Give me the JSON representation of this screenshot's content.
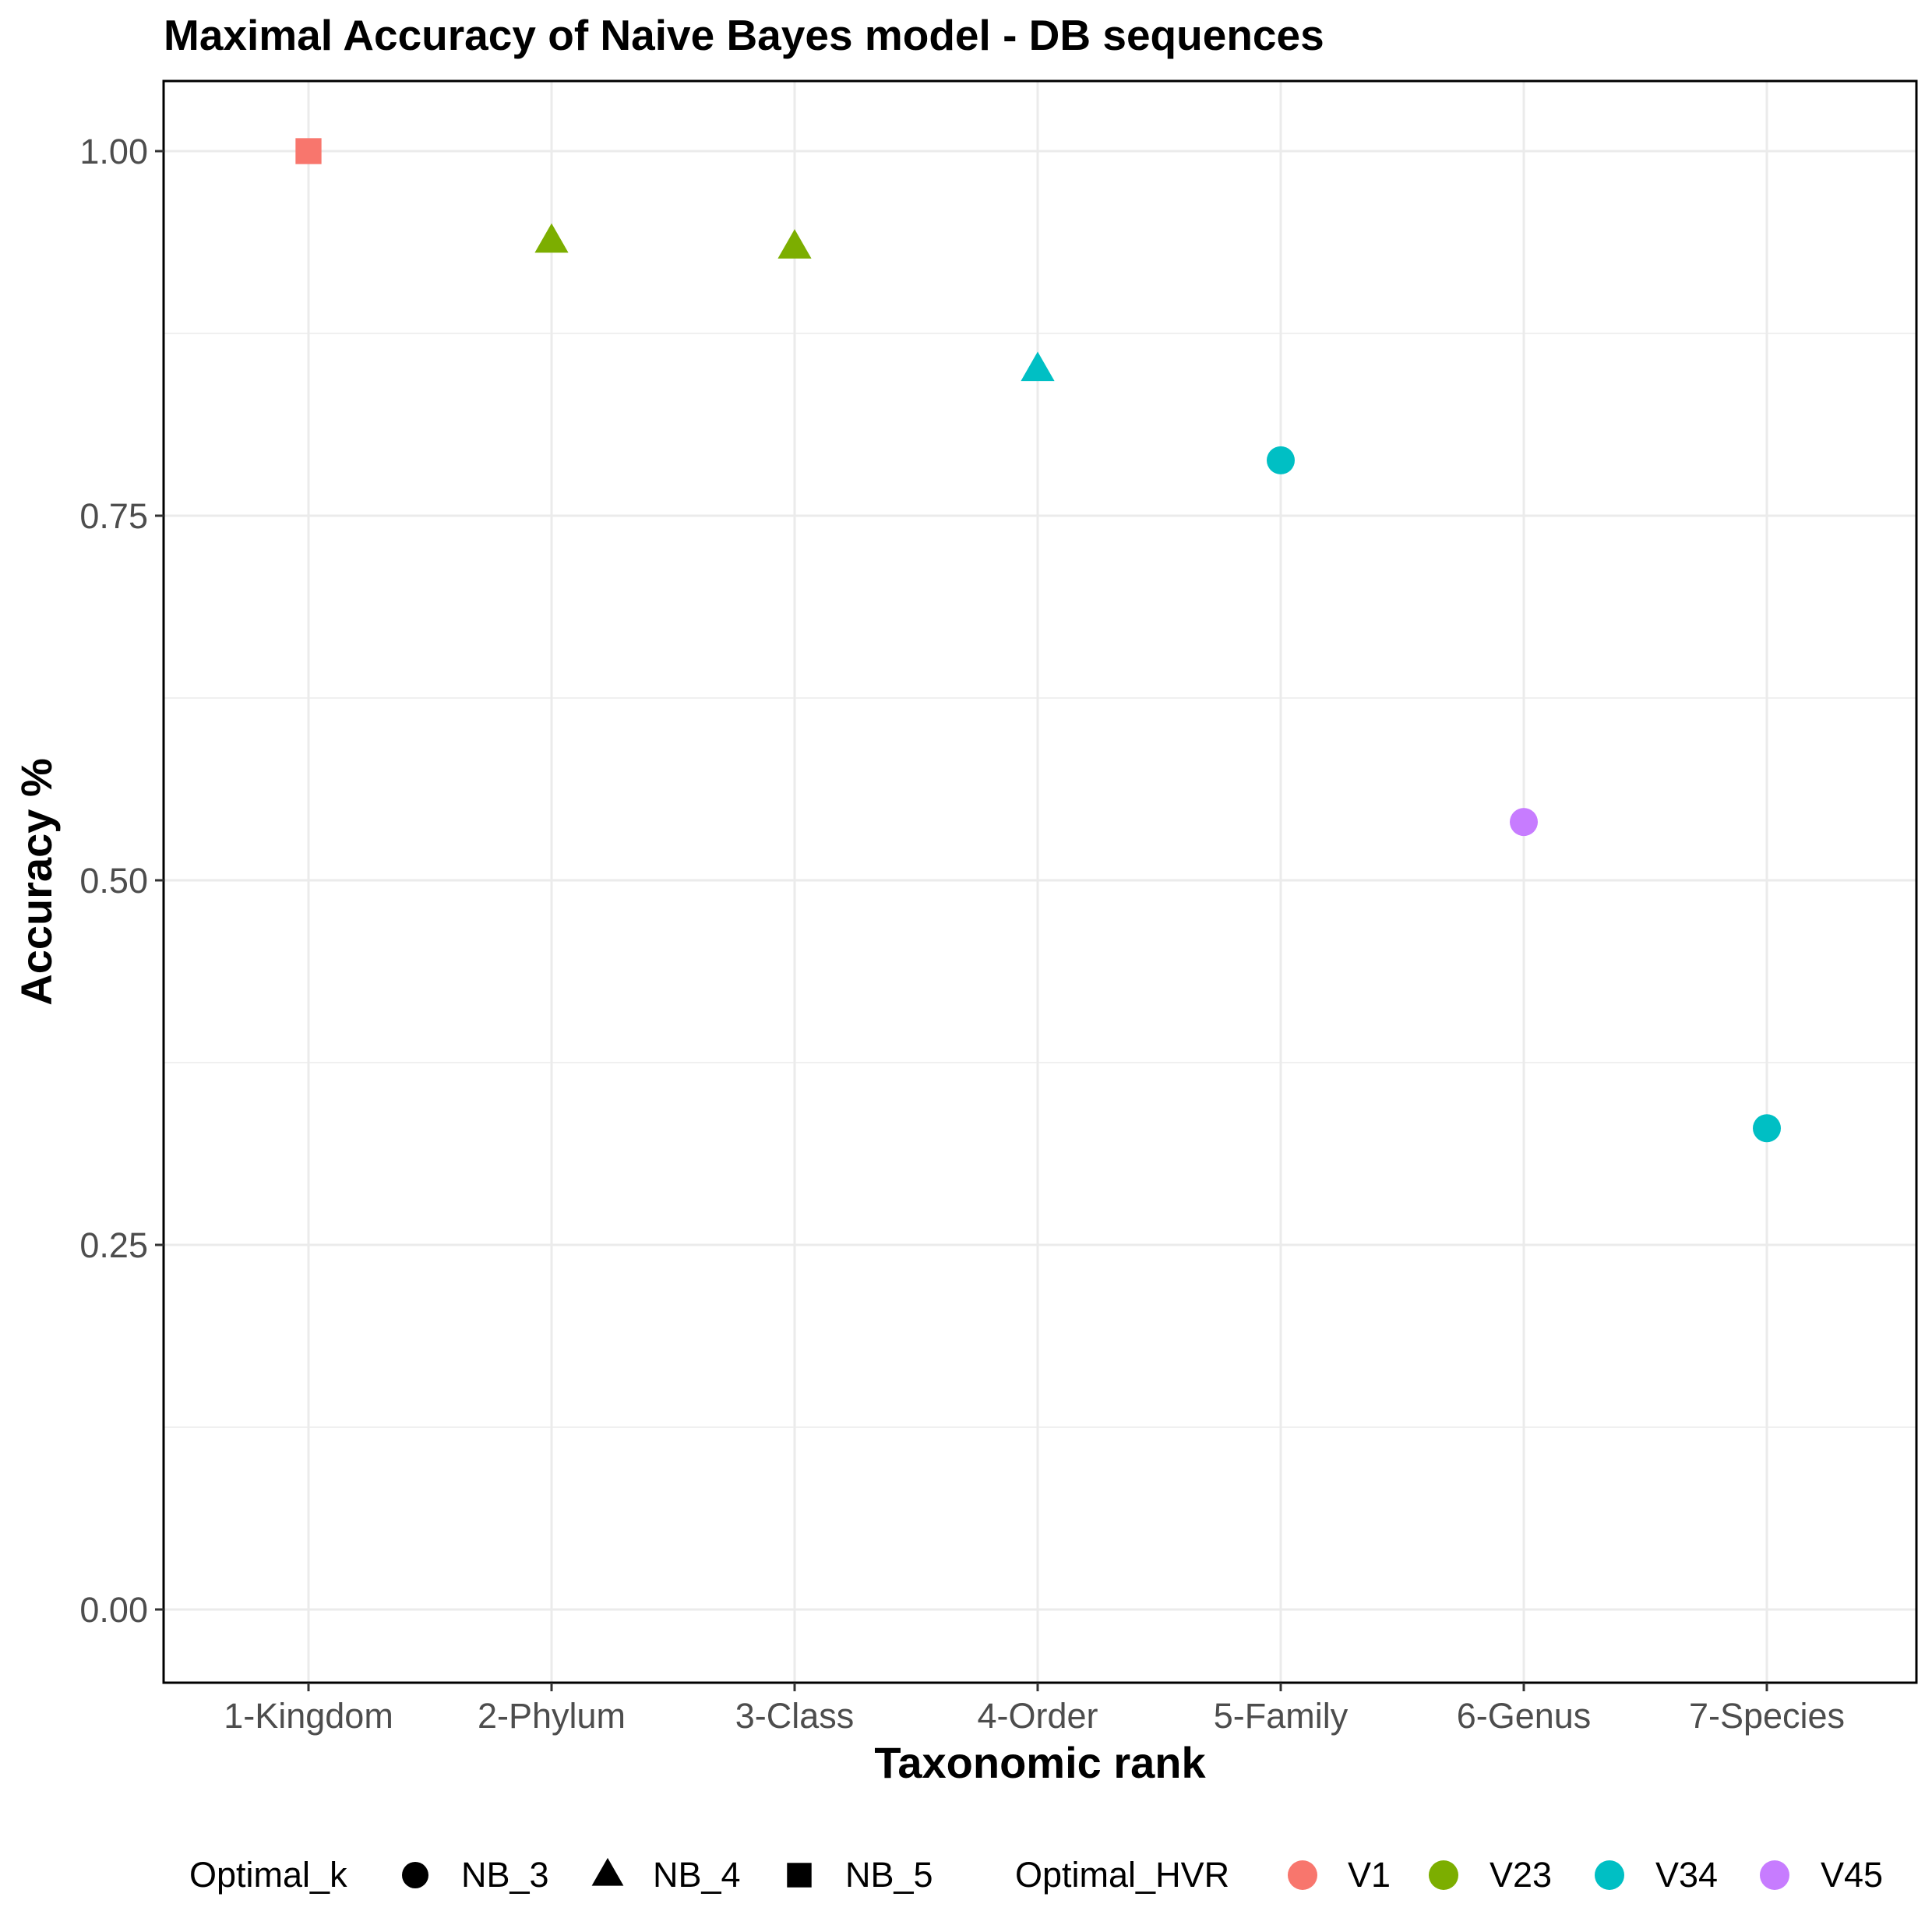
{
  "chart_data": {
    "type": "scatter",
    "title": "Maximal Accuracy of Naive Bayes model - DB sequences",
    "xlabel": "Taxonomic rank",
    "ylabel": "Accuracy %",
    "categories": [
      "1-Kingdom",
      "2-Phylum",
      "3-Class",
      "4-Order",
      "5-Family",
      "6-Genus",
      "7-Species"
    ],
    "ylim": [
      -0.05,
      1.05
    ],
    "yticks": [
      "0.00",
      "0.25",
      "0.50",
      "0.75",
      "1.00"
    ],
    "grid": true,
    "legend_position": "bottom",
    "points": [
      {
        "x": "1-Kingdom",
        "y": 1.0,
        "k": "NB_5",
        "hvr": "V1"
      },
      {
        "x": "2-Phylum",
        "y": 0.938,
        "k": "NB_4",
        "hvr": "V23"
      },
      {
        "x": "3-Class",
        "y": 0.934,
        "k": "NB_4",
        "hvr": "V23"
      },
      {
        "x": "4-Order",
        "y": 0.85,
        "k": "NB_4",
        "hvr": "V34"
      },
      {
        "x": "5-Family",
        "y": 0.788,
        "k": "NB_3",
        "hvr": "V34"
      },
      {
        "x": "6-Genus",
        "y": 0.54,
        "k": "NB_3",
        "hvr": "V45"
      },
      {
        "x": "7-Species",
        "y": 0.33,
        "k": "NB_3",
        "hvr": "V34"
      }
    ],
    "legend_shape": {
      "title": "Optimal_k",
      "items": [
        {
          "label": "NB_3",
          "shape": "circle"
        },
        {
          "label": "NB_4",
          "shape": "triangle"
        },
        {
          "label": "NB_5",
          "shape": "square"
        }
      ]
    },
    "legend_color": {
      "title": "Optimal_HVR",
      "items": [
        {
          "label": "V1",
          "color": "#F8766D"
        },
        {
          "label": "V23",
          "color": "#7CAE00"
        },
        {
          "label": "V34",
          "color": "#00BFC4"
        },
        {
          "label": "V45",
          "color": "#C77CFF"
        }
      ]
    }
  }
}
